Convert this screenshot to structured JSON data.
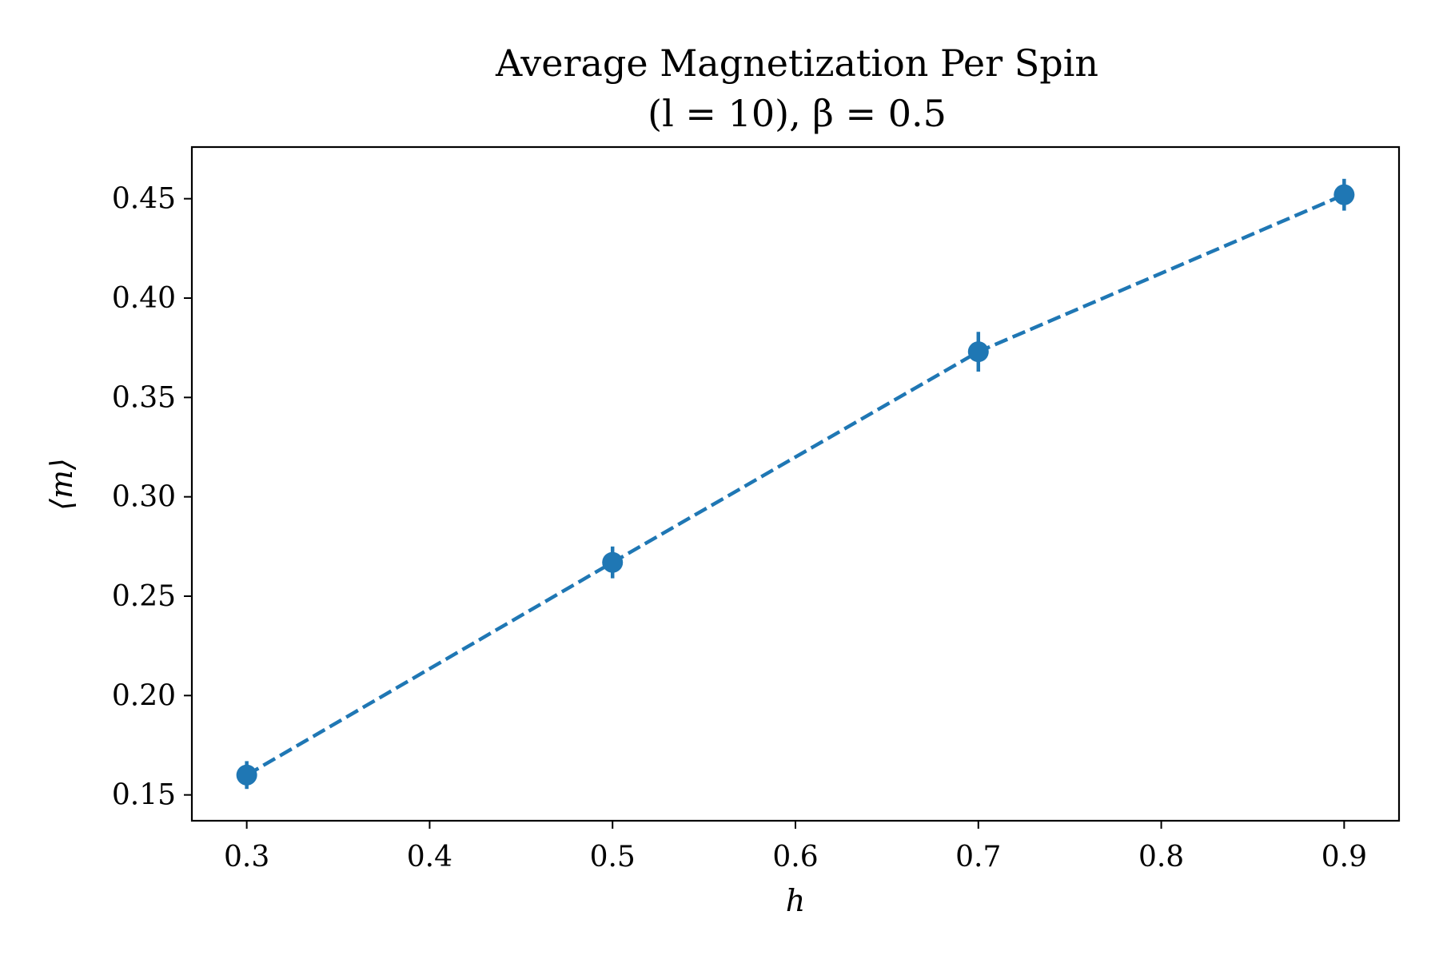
{
  "chart_data": {
    "type": "line",
    "title": "Average Magnetization Per Spin",
    "subtitle": "(l = 10), β = 0.5",
    "xlabel": "h",
    "ylabel": "⟨m⟩",
    "xlim": [
      0.27,
      0.93
    ],
    "ylim": [
      0.137,
      0.476
    ],
    "grid": false,
    "xticks": [
      0.3,
      0.4,
      0.5,
      0.6,
      0.7,
      0.8,
      0.9
    ],
    "xtick_labels": [
      "0.3",
      "0.4",
      "0.5",
      "0.6",
      "0.7",
      "0.8",
      "0.9"
    ],
    "yticks": [
      0.15,
      0.2,
      0.25,
      0.3,
      0.35,
      0.4,
      0.45
    ],
    "ytick_labels": [
      "0.15",
      "0.20",
      "0.25",
      "0.30",
      "0.35",
      "0.40",
      "0.45"
    ],
    "series": [
      {
        "x": [
          0.3,
          0.5,
          0.7,
          0.9
        ],
        "y": [
          0.16,
          0.267,
          0.373,
          0.452
        ],
        "yerr": [
          0.007,
          0.008,
          0.01,
          0.008
        ],
        "color": "#1f77b4",
        "linestyle": "dashed",
        "marker": "circle"
      }
    ]
  }
}
